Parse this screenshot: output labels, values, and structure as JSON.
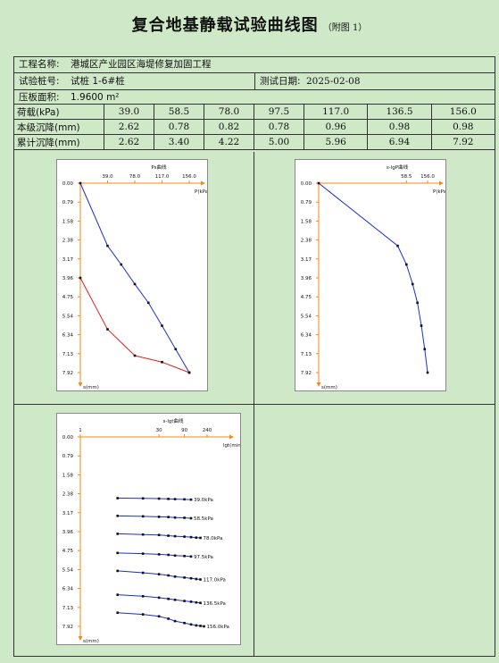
{
  "title": "复合地基静载试验曲线图",
  "title_note": "（附图 1）",
  "info": {
    "project_label": "工程名称:",
    "project_value": "港城区产业园区海堤修复加固工程",
    "pile_label": "试验桩号:",
    "pile_value": "试桩 1-6#桩",
    "date_label": "测试日期:",
    "date_value": "2025-02-08",
    "area_label": "压板面积:",
    "area_value": "1.9600 m²"
  },
  "table": {
    "load_label": "荷载(kPa)",
    "settle_label": "本级沉降(mm)",
    "cum_label": "累计沉降(mm)",
    "loads": [
      "39.0",
      "58.5",
      "78.0",
      "97.5",
      "117.0",
      "136.5",
      "156.0"
    ],
    "settle": [
      "2.62",
      "0.78",
      "0.82",
      "0.78",
      "0.96",
      "0.98",
      "0.98"
    ],
    "cum": [
      "2.62",
      "3.40",
      "4.22",
      "5.00",
      "5.96",
      "6.94",
      "7.92"
    ]
  },
  "chart_data": [
    {
      "type": "line",
      "title": "Ps曲线",
      "xlabel": "P(kPa)",
      "ylabel": "s(mm)",
      "x_ticks": [
        39.0,
        78.0,
        117.0,
        156.0
      ],
      "x_tick_labels": [
        "39.0",
        "78.0",
        "117.0",
        "156.0"
      ],
      "xlim": [
        0,
        156.0
      ],
      "y_ticks": [
        "0.00",
        "0.79",
        "1.58",
        "2.38",
        "3.17",
        "3.96",
        "4.75",
        "5.54",
        "6.34",
        "7.13",
        "7.92"
      ],
      "ylim": [
        0,
        7.92
      ],
      "series": [
        {
          "color": "#1a2ecc",
          "x": [
            0,
            39.0,
            58.5,
            78.0,
            97.5,
            117.0,
            136.5,
            156.0
          ],
          "y": [
            0,
            2.62,
            3.4,
            4.22,
            5.0,
            5.96,
            6.94,
            7.92
          ]
        },
        {
          "color": "#e02020",
          "x": [
            0,
            39.0,
            78.0,
            117.0,
            156.0
          ],
          "y": [
            3.96,
            6.11,
            7.21,
            7.48,
            7.92
          ]
        }
      ]
    },
    {
      "type": "line",
      "title": "s-lgP曲线",
      "xlabel": "P(kPa)",
      "ylabel": "s(mm)",
      "x_ticks": [
        58.5,
        156.0
      ],
      "x_tick_labels": [
        "58.5",
        "156.0"
      ],
      "y_ticks": [
        "0.00",
        "0.79",
        "1.58",
        "2.38",
        "3.17",
        "3.96",
        "4.75",
        "5.54",
        "6.34",
        "7.13",
        "7.92"
      ],
      "ylim": [
        0,
        7.92
      ],
      "series": [
        {
          "color": "#1a2ecc",
          "x": [
            1,
            39.0,
            58.5,
            78.0,
            97.5,
            117.0,
            136.5,
            156.0
          ],
          "y": [
            0,
            2.62,
            3.4,
            4.22,
            5.0,
            5.96,
            6.94,
            7.92
          ]
        }
      ]
    },
    {
      "type": "line",
      "title": "s-lgt曲线",
      "xlabel": "lgt(min)",
      "ylabel": "s(mm)",
      "x_ticks": [
        1,
        30,
        90,
        240
      ],
      "x_tick_labels": [
        "1",
        "30",
        "90",
        "240"
      ],
      "y_ticks": [
        "0.00",
        "0.79",
        "1.58",
        "2.38",
        "3.17",
        "3.96",
        "4.75",
        "5.54",
        "6.34",
        "7.13",
        "7.92"
      ],
      "ylim": [
        0,
        7.92
      ],
      "series": [
        {
          "name": "39.0kPa",
          "color": "#1a2ecc",
          "x": [
            5,
            15,
            30,
            45,
            60,
            90,
            120
          ],
          "y": [
            2.56,
            2.57,
            2.58,
            2.59,
            2.6,
            2.61,
            2.62
          ]
        },
        {
          "name": "58.5kPa",
          "color": "#1a2ecc",
          "x": [
            5,
            15,
            30,
            45,
            60,
            90,
            120
          ],
          "y": [
            3.3,
            3.32,
            3.34,
            3.35,
            3.37,
            3.38,
            3.4
          ]
        },
        {
          "name": "78.0kPa",
          "color": "#1a2ecc",
          "x": [
            5,
            15,
            30,
            45,
            60,
            90,
            120,
            150,
            180
          ],
          "y": [
            4.05,
            4.08,
            4.1,
            4.13,
            4.15,
            4.17,
            4.19,
            4.21,
            4.22
          ]
        },
        {
          "name": "97.5kPa",
          "color": "#1a2ecc",
          "x": [
            5,
            15,
            30,
            45,
            60,
            90,
            120
          ],
          "y": [
            4.85,
            4.88,
            4.91,
            4.93,
            4.96,
            4.98,
            5.0
          ]
        },
        {
          "name": "117.0kPa",
          "color": "#1a2ecc",
          "x": [
            5,
            15,
            30,
            45,
            60,
            90,
            120,
            150,
            180
          ],
          "y": [
            5.6,
            5.68,
            5.74,
            5.79,
            5.84,
            5.88,
            5.91,
            5.94,
            5.96
          ]
        },
        {
          "name": "136.5kPa",
          "color": "#1a2ecc",
          "x": [
            5,
            15,
            30,
            45,
            60,
            90,
            120,
            150,
            180
          ],
          "y": [
            6.6,
            6.66,
            6.72,
            6.77,
            6.81,
            6.86,
            6.89,
            6.92,
            6.94
          ]
        },
        {
          "name": "156.0kPa",
          "color": "#1a2ecc",
          "x": [
            5,
            15,
            30,
            45,
            60,
            90,
            120,
            150,
            180,
            210
          ],
          "y": [
            7.35,
            7.42,
            7.5,
            7.6,
            7.7,
            7.78,
            7.84,
            7.88,
            7.9,
            7.92
          ]
        }
      ]
    }
  ]
}
